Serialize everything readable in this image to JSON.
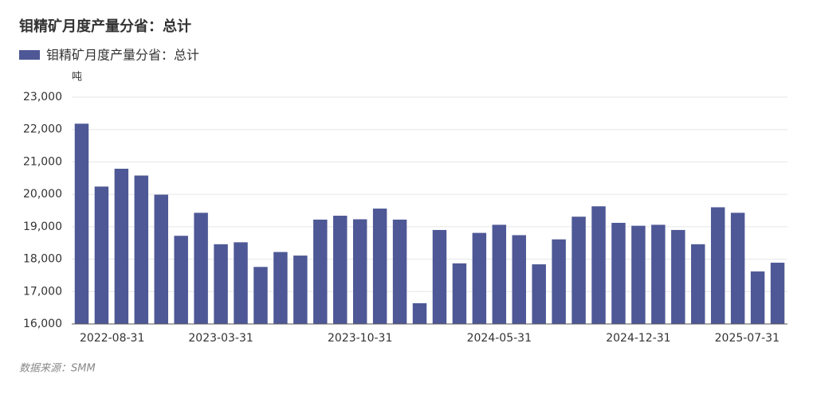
{
  "chart_data": {
    "type": "bar",
    "title": "钼精矿月度产量分省：总计",
    "unit": "吨",
    "source": "数据来源：SMM",
    "series": [
      {
        "name": "钼精矿月度产量分省：总计",
        "color": "#4e5896",
        "values": [
          22180,
          20240,
          20790,
          20580,
          19990,
          18720,
          19430,
          18460,
          18520,
          17760,
          18220,
          18110,
          19220,
          19340,
          19230,
          19560,
          19220,
          16640,
          18900,
          17870,
          18810,
          19060,
          18740,
          17840,
          18610,
          19310,
          19630,
          19120,
          19030,
          19060,
          18900,
          18460,
          19600,
          19430,
          17620,
          17890
        ]
      }
    ],
    "categories": [
      "2022-08-31",
      null,
      null,
      null,
      null,
      null,
      null,
      "2023-03-31",
      null,
      null,
      null,
      null,
      null,
      null,
      "2023-10-31",
      null,
      null,
      null,
      null,
      null,
      null,
      "2024-05-31",
      null,
      null,
      null,
      null,
      null,
      null,
      "2024-12-31",
      null,
      null,
      null,
      null,
      null,
      null,
      "2025-07-31"
    ],
    "ylim": [
      16000,
      23000
    ],
    "yticks": [
      {
        "value": 16000,
        "label": "16,000"
      },
      {
        "value": 17000,
        "label": "17,000"
      },
      {
        "value": 18000,
        "label": "18,000"
      },
      {
        "value": 19000,
        "label": "19,000"
      },
      {
        "value": 20000,
        "label": "20,000"
      },
      {
        "value": 21000,
        "label": "21,000"
      },
      {
        "value": 22000,
        "label": "22,000"
      },
      {
        "value": 23000,
        "label": "23,000"
      }
    ],
    "grid": true
  }
}
